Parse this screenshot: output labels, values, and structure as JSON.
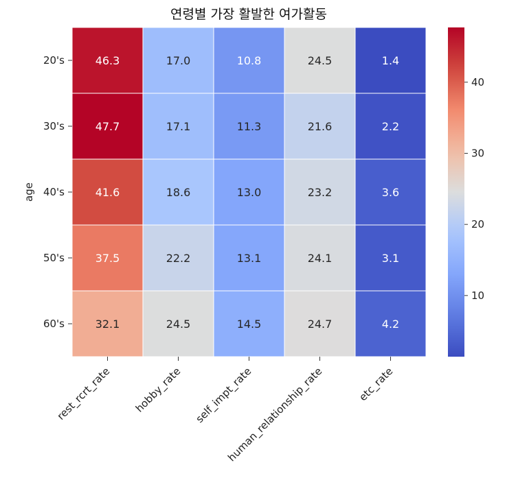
{
  "chart_data": {
    "type": "heatmap",
    "title": "연령별 가장 활발한 여가활동",
    "ylabel": "age",
    "xlabel": "",
    "columns": [
      "rest_rcrt_rate",
      "hobby_rate",
      "self_impt_rate",
      "human_relationship_rate",
      "etc_rate"
    ],
    "rows": [
      "20's",
      "30's",
      "40's",
      "50's",
      "60's"
    ],
    "values": [
      [
        46.3,
        17.0,
        10.8,
        24.5,
        1.4
      ],
      [
        47.7,
        17.1,
        11.3,
        21.6,
        2.2
      ],
      [
        41.6,
        18.6,
        13.0,
        23.2,
        3.6
      ],
      [
        37.5,
        22.2,
        13.1,
        24.1,
        3.1
      ],
      [
        32.1,
        24.5,
        14.5,
        24.7,
        4.2
      ]
    ],
    "colormap": "coolwarm",
    "vmin": 1.4,
    "vmax": 47.7,
    "colorbar_ticks": [
      10,
      20,
      30,
      40
    ],
    "annotated": true
  }
}
